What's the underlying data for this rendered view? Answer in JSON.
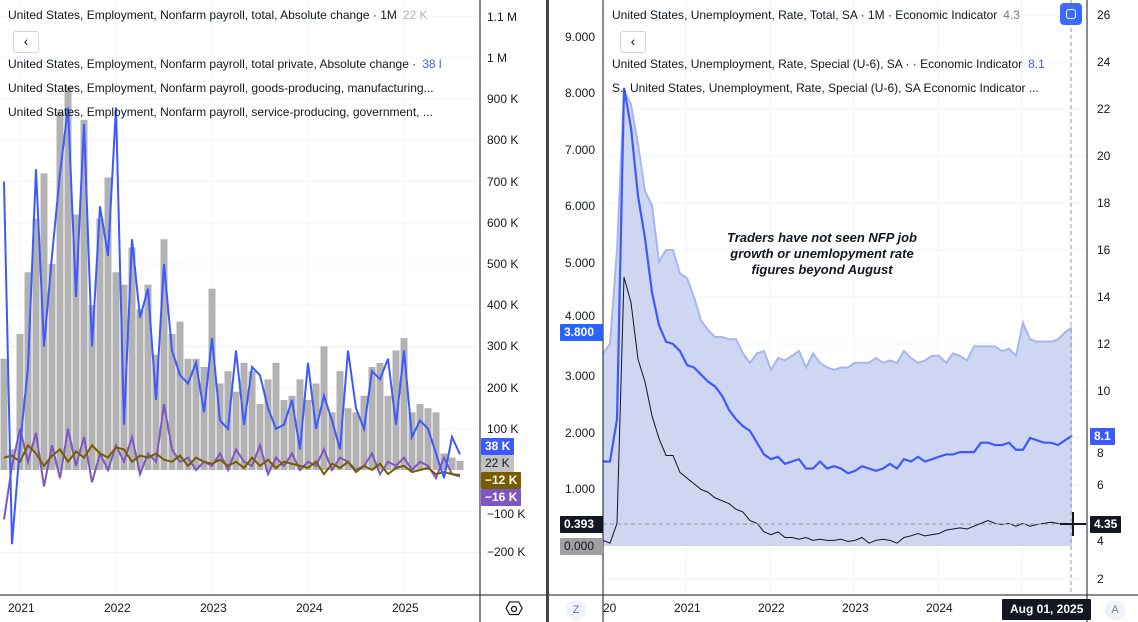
{
  "left_pane": {
    "legends": [
      {
        "label": "United States, Employment, Nonfarm payroll, total, Absolute change · 1M",
        "value": "22 K",
        "color": "#b2b5be"
      },
      {
        "label": "United States, Employment, Nonfarm payroll, total private, Absolute change ·",
        "value": "38 l",
        "color": "#3d5afe"
      },
      {
        "label": "United States, Employment, Nonfarm payroll, goods-producing, manufacturing...",
        "value": "",
        "color": ""
      },
      {
        "label": "United States, Employment, Nonfarm payroll, service-producing, government, ...",
        "value": "",
        "color": ""
      }
    ],
    "collapse_button": "‹",
    "y_axis": {
      "ticks": [
        "1.1 M",
        "1 M",
        "900 K",
        "800 K",
        "700 K",
        "600 K",
        "500 K",
        "400 K",
        "300 K",
        "200 K",
        "100 K",
        "−100 K",
        "−200 K"
      ],
      "tick_values": [
        1100,
        1000,
        900,
        800,
        700,
        600,
        500,
        400,
        300,
        200,
        100,
        -100,
        -200
      ]
    },
    "x_axis": [
      "2021",
      "2022",
      "2023",
      "2024",
      "2025"
    ],
    "price_tags": [
      {
        "text": "38 K",
        "color": "#3d5afe",
        "value": 38
      },
      {
        "text": "22 K",
        "color": "#c0c0c0",
        "value": 22
      },
      {
        "text": "−12 K",
        "color": "#7a5c00",
        "value": -12
      },
      {
        "text": "−16 K",
        "color": "#7e57c2",
        "value": -16
      }
    ],
    "settings_icon": "hexagon-settings-icon",
    "series": {
      "start": "2020-11",
      "total_bars": [
        270,
        50,
        330,
        480,
        610,
        720,
        500,
        870,
        930,
        620,
        850,
        400,
        610,
        710,
        480,
        450,
        540,
        390,
        450,
        280,
        560,
        330,
        360,
        270,
        270,
        250,
        440,
        210,
        240,
        190,
        260,
        240,
        160,
        220,
        260,
        170,
        180,
        220,
        170,
        210,
        300,
        140,
        240,
        150,
        140,
        180,
        250,
        260,
        180,
        290,
        320,
        140,
        160,
        150,
        140,
        40,
        30,
        22
      ],
      "private": [
        700,
        -180,
        60,
        250,
        730,
        300,
        520,
        720,
        880,
        420,
        840,
        300,
        640,
        520,
        880,
        110,
        560,
        370,
        440,
        170,
        500,
        290,
        230,
        210,
        260,
        140,
        320,
        120,
        100,
        290,
        110,
        250,
        230,
        150,
        100,
        110,
        170,
        50,
        260,
        100,
        180,
        120,
        50,
        290,
        150,
        100,
        240,
        220,
        270,
        110,
        290,
        80,
        120,
        100,
        40,
        -20,
        80,
        38
      ],
      "manufacturing": [
        30,
        35,
        20,
        60,
        40,
        10,
        35,
        50,
        20,
        45,
        30,
        60,
        40,
        30,
        55,
        50,
        20,
        35,
        30,
        40,
        25,
        20,
        35,
        10,
        30,
        20,
        15,
        25,
        10,
        20,
        5,
        30,
        10,
        25,
        5,
        20,
        15,
        10,
        5,
        20,
        -10,
        15,
        5,
        20,
        -5,
        10,
        0,
        15,
        -10,
        5,
        10,
        -5,
        0,
        5,
        -10,
        -5,
        -10,
        -12
      ],
      "government": [
        -120,
        10,
        100,
        20,
        90,
        -40,
        60,
        -20,
        100,
        10,
        80,
        -30,
        40,
        0,
        60,
        20,
        80,
        -10,
        40,
        20,
        160,
        50,
        20,
        30,
        0,
        20,
        10,
        40,
        0,
        50,
        20,
        10,
        60,
        -10,
        30,
        10,
        40,
        0,
        20,
        10,
        50,
        0,
        30,
        20,
        0,
        10,
        40,
        -10,
        20,
        10,
        30,
        0,
        20,
        10,
        -20,
        30,
        -10,
        -16
      ]
    },
    "colors": {
      "bars": "#b2b2b2",
      "private": "#3d5afe",
      "manufacturing": "#7a5c00",
      "government": "#7e57c2"
    }
  },
  "right_pane": {
    "legends": [
      {
        "label": "United States, Unemployment, Rate, Total, SA · 1M · Economic Indicator",
        "value": "4.3",
        "color": "#787b86"
      },
      {
        "label": "United States, Unemployment, Rate, Special (U-6), SA · · Economic Indicator",
        "value": "8.1",
        "color": "#3d5afe"
      },
      {
        "label": "S.. United States, Unemployment, Rate, Special (U-6), SA Economic Indicator ...",
        "value": "",
        "color": ""
      }
    ],
    "collapse_button": "‹",
    "left_axis": {
      "ticks": [
        "9.000",
        "8.000",
        "7.000",
        "6.000",
        "5.000",
        "4.000",
        "3.000",
        "2.000",
        "1.000"
      ],
      "tick_values": [
        9,
        8,
        7,
        6,
        5,
        4,
        3,
        2,
        1
      ]
    },
    "right_axis": {
      "ticks": [
        "26",
        "24",
        "22",
        "20",
        "18",
        "16",
        "14",
        "12",
        "10",
        "8",
        "6",
        "4",
        "2"
      ],
      "tick_values": [
        26,
        24,
        22,
        20,
        18,
        16,
        14,
        12,
        10,
        8,
        6,
        4,
        2
      ]
    },
    "x_axis": [
      "20",
      "2021",
      "2022",
      "2023",
      "2024"
    ],
    "annotation": "Traders have not seen NFP job growth or unemlopyment rate figures beyond August",
    "left_tags": [
      {
        "text": "3.800",
        "color": "#2962ff"
      },
      {
        "text": "0.393",
        "color": "#131722"
      },
      {
        "text": "0.000",
        "color": "#a0a0a0"
      }
    ],
    "right_tags": [
      {
        "text": "8.1",
        "color": "#3d5afe"
      },
      {
        "text": "4.35",
        "color": "#131722"
      }
    ],
    "crosshair_date": "Aug 01, 2025",
    "z_button": "Z",
    "a_button": "A",
    "series": {
      "start": "2020-01",
      "u6": [
        7.0,
        7.0,
        8.8,
        22.9,
        21.2,
        18.3,
        16.5,
        14.2,
        12.8,
        12.1,
        12.0,
        11.7,
        11.1,
        11.0,
        10.7,
        10.4,
        10.2,
        9.8,
        9.2,
        8.8,
        8.5,
        8.3,
        7.8,
        7.3,
        7.1,
        7.2,
        6.9,
        7.0,
        7.1,
        6.7,
        6.7,
        7.0,
        6.7,
        6.8,
        6.7,
        6.5,
        6.6,
        6.8,
        6.7,
        6.6,
        6.7,
        6.9,
        6.7,
        7.1,
        7.0,
        7.2,
        7.0,
        7.1,
        7.2,
        7.3,
        7.3,
        7.4,
        7.4,
        7.4,
        7.8,
        7.8,
        7.7,
        7.7,
        7.8,
        7.5,
        7.5,
        8.0,
        7.9,
        7.8,
        7.8,
        7.7,
        7.9,
        8.1
      ],
      "band_upper": [
        11.6,
        12,
        16,
        22.8,
        22.2,
        20.5,
        18.5,
        17.9,
        15.5,
        16.0,
        16.0,
        15.0,
        14.8,
        14.0,
        13.0,
        12.6,
        12.3,
        12.3,
        12.2,
        12.2,
        11.6,
        11.2,
        11.6,
        11.7,
        10.9,
        11.4,
        11.3,
        11.5,
        11.7,
        11.0,
        11.6,
        11.2,
        11.0,
        10.9,
        11.0,
        11.0,
        11.2,
        11.2,
        11.2,
        11.4,
        11.2,
        11.3,
        11.2,
        11.7,
        11.4,
        11.2,
        11.3,
        11.5,
        11.5,
        11.2,
        11.6,
        11.5,
        11.3,
        11.9,
        11.9,
        11.9,
        11.9,
        11.7,
        11.8,
        11.5,
        12.9,
        12.2,
        12.1,
        12.1,
        12.1,
        12.2,
        12.5,
        12.7
      ],
      "indicator": [
        0.1,
        0.05,
        0.4,
        4.75,
        4.3,
        3.3,
        2.9,
        2.3,
        1.9,
        1.6,
        1.6,
        1.3,
        1.2,
        1.1,
        1.0,
        0.95,
        0.85,
        0.8,
        0.75,
        0.65,
        0.6,
        0.45,
        0.4,
        0.25,
        0.2,
        0.25,
        0.15,
        0.15,
        0.12,
        0.15,
        0.1,
        0.12,
        0.1,
        0.1,
        0.12,
        0.08,
        0.1,
        0.15,
        0.05,
        0.1,
        0.12,
        0.1,
        0.05,
        0.15,
        0.18,
        0.22,
        0.18,
        0.2,
        0.22,
        0.28,
        0.3,
        0.32,
        0.3,
        0.35,
        0.4,
        0.45,
        0.4,
        0.38,
        0.4,
        0.35,
        0.4,
        0.35,
        0.38,
        0.4,
        0.42,
        0.4,
        0.38,
        0.39
      ]
    },
    "colors": {
      "u6": "#3d5afe",
      "band": "#c5cff0",
      "band_line": "#a7b6ef",
      "indicator": "#131722"
    }
  }
}
